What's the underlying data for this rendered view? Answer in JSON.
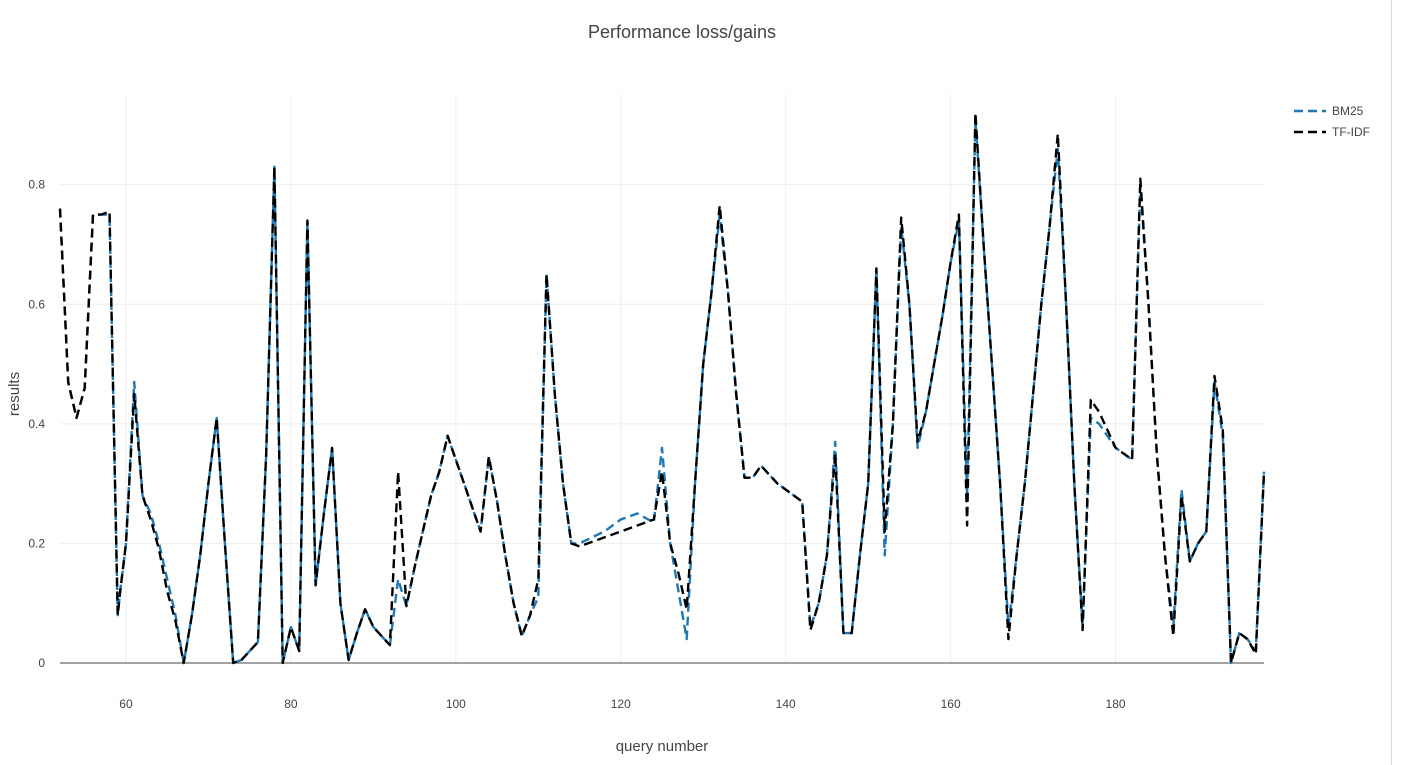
{
  "chart_data": {
    "type": "line",
    "title": "Performance loss/gains",
    "xlabel": "query number",
    "ylabel": "results",
    "xlim": [
      52,
      198
    ],
    "ylim": [
      0,
      0.95
    ],
    "xticks": [
      60,
      80,
      100,
      120,
      140,
      160,
      180
    ],
    "yticks": [
      0,
      0.2,
      0.4,
      0.6,
      0.8
    ],
    "ytick_labels": [
      "0",
      "0.2",
      "0.4",
      "0.6",
      "0.8"
    ],
    "grid": true,
    "legend_position": "top-right",
    "series": [
      {
        "name": "BM25",
        "color": "#1f77b4",
        "dash": "dashed",
        "points": [
          [
            52,
            0.76
          ],
          [
            53,
            0.47
          ],
          [
            54,
            0.41
          ],
          [
            55,
            0.46
          ],
          [
            56,
            0.75
          ],
          [
            57,
            0.75
          ],
          [
            58,
            0.75
          ],
          [
            59,
            0.08
          ],
          [
            59.3,
            0.12
          ],
          [
            60,
            0.2
          ],
          [
            61,
            0.47
          ],
          [
            62,
            0.28
          ],
          [
            63,
            0.25
          ],
          [
            64,
            0.2
          ],
          [
            65,
            0.14
          ],
          [
            66,
            0.08
          ],
          [
            67,
            0.0
          ],
          [
            68,
            0.08
          ],
          [
            69,
            0.18
          ],
          [
            70,
            0.3
          ],
          [
            71,
            0.41
          ],
          [
            72,
            0.2
          ],
          [
            73,
            0.0
          ],
          [
            74,
            0.005
          ],
          [
            76,
            0.035
          ],
          [
            77,
            0.35
          ],
          [
            78,
            0.83
          ],
          [
            79,
            0.0
          ],
          [
            80,
            0.06
          ],
          [
            81,
            0.02
          ],
          [
            82,
            0.74
          ],
          [
            83,
            0.13
          ],
          [
            84,
            0.25
          ],
          [
            85,
            0.36
          ],
          [
            86,
            0.1
          ],
          [
            87,
            0.005
          ],
          [
            88,
            0.05
          ],
          [
            89,
            0.09
          ],
          [
            90,
            0.06
          ],
          [
            91,
            0.045
          ],
          [
            92,
            0.03
          ],
          [
            93,
            0.14
          ],
          [
            94,
            0.095
          ],
          [
            95,
            0.16
          ],
          [
            96,
            0.22
          ],
          [
            97,
            0.28
          ],
          [
            98,
            0.32
          ],
          [
            99,
            0.38
          ],
          [
            100,
            0.34
          ],
          [
            101,
            0.3
          ],
          [
            102,
            0.26
          ],
          [
            103,
            0.22
          ],
          [
            104,
            0.345
          ],
          [
            105,
            0.27
          ],
          [
            106,
            0.18
          ],
          [
            107,
            0.1
          ],
          [
            108,
            0.045
          ],
          [
            109,
            0.08
          ],
          [
            110,
            0.11
          ],
          [
            111,
            0.65
          ],
          [
            112,
            0.45
          ],
          [
            113,
            0.3
          ],
          [
            114,
            0.2
          ],
          [
            115,
            0.2
          ],
          [
            118,
            0.22
          ],
          [
            120,
            0.24
          ],
          [
            122,
            0.25
          ],
          [
            124,
            0.235
          ],
          [
            125,
            0.36
          ],
          [
            126,
            0.2
          ],
          [
            127,
            0.12
          ],
          [
            128,
            0.04
          ],
          [
            129,
            0.3
          ],
          [
            130,
            0.5
          ],
          [
            131,
            0.62
          ],
          [
            132,
            0.75
          ],
          [
            133,
            0.62
          ],
          [
            134,
            0.45
          ],
          [
            135,
            0.31
          ],
          [
            136,
            0.31
          ],
          [
            137,
            0.33
          ],
          [
            139,
            0.3
          ],
          [
            142,
            0.27
          ],
          [
            143,
            0.06
          ],
          [
            144,
            0.1
          ],
          [
            145,
            0.18
          ],
          [
            146,
            0.37
          ],
          [
            147,
            0.05
          ],
          [
            148,
            0.05
          ],
          [
            149,
            0.18
          ],
          [
            150,
            0.3
          ],
          [
            151,
            0.66
          ],
          [
            152,
            0.18
          ],
          [
            153,
            0.4
          ],
          [
            154,
            0.73
          ],
          [
            155,
            0.6
          ],
          [
            156,
            0.36
          ],
          [
            157,
            0.42
          ],
          [
            158,
            0.5
          ],
          [
            159,
            0.58
          ],
          [
            160,
            0.67
          ],
          [
            161,
            0.74
          ],
          [
            162,
            0.28
          ],
          [
            163,
            0.91
          ],
          [
            164,
            0.7
          ],
          [
            165,
            0.5
          ],
          [
            166,
            0.3
          ],
          [
            167,
            0.06
          ],
          [
            168,
            0.18
          ],
          [
            169,
            0.3
          ],
          [
            170,
            0.45
          ],
          [
            171,
            0.6
          ],
          [
            172,
            0.73
          ],
          [
            173,
            0.86
          ],
          [
            174,
            0.6
          ],
          [
            175,
            0.3
          ],
          [
            176,
            0.06
          ],
          [
            177,
            0.41
          ],
          [
            178,
            0.4
          ],
          [
            179,
            0.38
          ],
          [
            180,
            0.36
          ],
          [
            181,
            0.35
          ],
          [
            182,
            0.34
          ],
          [
            183,
            0.8
          ],
          [
            184,
            0.6
          ],
          [
            185,
            0.35
          ],
          [
            186,
            0.18
          ],
          [
            187,
            0.06
          ],
          [
            188,
            0.29
          ],
          [
            189,
            0.17
          ],
          [
            190,
            0.2
          ],
          [
            191,
            0.22
          ],
          [
            192,
            0.47
          ],
          [
            193,
            0.38
          ],
          [
            194,
            0.0
          ],
          [
            195,
            0.05
          ],
          [
            196,
            0.04
          ],
          [
            197,
            0.02
          ],
          [
            198,
            0.32
          ]
        ]
      },
      {
        "name": "TF-IDF",
        "color": "#000000",
        "dash": "dashed",
        "points": [
          [
            52,
            0.76
          ],
          [
            53,
            0.47
          ],
          [
            54,
            0.41
          ],
          [
            55,
            0.46
          ],
          [
            56,
            0.75
          ],
          [
            57,
            0.75
          ],
          [
            58,
            0.755
          ],
          [
            59,
            0.08
          ],
          [
            59.3,
            0.12
          ],
          [
            60,
            0.2
          ],
          [
            61,
            0.45
          ],
          [
            62,
            0.28
          ],
          [
            63,
            0.24
          ],
          [
            64,
            0.19
          ],
          [
            65,
            0.12
          ],
          [
            66,
            0.07
          ],
          [
            67,
            0.0
          ],
          [
            68,
            0.08
          ],
          [
            69,
            0.18
          ],
          [
            70,
            0.3
          ],
          [
            71,
            0.41
          ],
          [
            72,
            0.2
          ],
          [
            73,
            0.0
          ],
          [
            74,
            0.005
          ],
          [
            76,
            0.035
          ],
          [
            77,
            0.35
          ],
          [
            78,
            0.83
          ],
          [
            79,
            0.0
          ],
          [
            80,
            0.06
          ],
          [
            81,
            0.02
          ],
          [
            82,
            0.74
          ],
          [
            83,
            0.13
          ],
          [
            84,
            0.25
          ],
          [
            85,
            0.36
          ],
          [
            86,
            0.1
          ],
          [
            87,
            0.005
          ],
          [
            88,
            0.05
          ],
          [
            89,
            0.09
          ],
          [
            90,
            0.06
          ],
          [
            91,
            0.045
          ],
          [
            92,
            0.03
          ],
          [
            93,
            0.32
          ],
          [
            94,
            0.095
          ],
          [
            95,
            0.16
          ],
          [
            96,
            0.22
          ],
          [
            97,
            0.28
          ],
          [
            98,
            0.32
          ],
          [
            99,
            0.38
          ],
          [
            100,
            0.34
          ],
          [
            101,
            0.3
          ],
          [
            102,
            0.26
          ],
          [
            103,
            0.22
          ],
          [
            104,
            0.345
          ],
          [
            105,
            0.27
          ],
          [
            106,
            0.18
          ],
          [
            107,
            0.1
          ],
          [
            108,
            0.045
          ],
          [
            109,
            0.08
          ],
          [
            110,
            0.14
          ],
          [
            111,
            0.65
          ],
          [
            112,
            0.45
          ],
          [
            113,
            0.3
          ],
          [
            114,
            0.2
          ],
          [
            115,
            0.195
          ],
          [
            118,
            0.21
          ],
          [
            120,
            0.22
          ],
          [
            122,
            0.23
          ],
          [
            124,
            0.24
          ],
          [
            125,
            0.32
          ],
          [
            126,
            0.2
          ],
          [
            127,
            0.15
          ],
          [
            128,
            0.09
          ],
          [
            129,
            0.3
          ],
          [
            130,
            0.5
          ],
          [
            131,
            0.62
          ],
          [
            132,
            0.765
          ],
          [
            133,
            0.62
          ],
          [
            134,
            0.45
          ],
          [
            135,
            0.31
          ],
          [
            136,
            0.31
          ],
          [
            137,
            0.33
          ],
          [
            139,
            0.3
          ],
          [
            142,
            0.27
          ],
          [
            143,
            0.055
          ],
          [
            144,
            0.1
          ],
          [
            145,
            0.18
          ],
          [
            146,
            0.35
          ],
          [
            147,
            0.05
          ],
          [
            148,
            0.05
          ],
          [
            149,
            0.18
          ],
          [
            150,
            0.3
          ],
          [
            151,
            0.66
          ],
          [
            152,
            0.22
          ],
          [
            153,
            0.4
          ],
          [
            154,
            0.745
          ],
          [
            155,
            0.6
          ],
          [
            156,
            0.37
          ],
          [
            157,
            0.42
          ],
          [
            158,
            0.5
          ],
          [
            159,
            0.58
          ],
          [
            160,
            0.67
          ],
          [
            161,
            0.75
          ],
          [
            162,
            0.23
          ],
          [
            163,
            0.92
          ],
          [
            164,
            0.7
          ],
          [
            165,
            0.5
          ],
          [
            166,
            0.3
          ],
          [
            167,
            0.04
          ],
          [
            168,
            0.18
          ],
          [
            169,
            0.3
          ],
          [
            170,
            0.45
          ],
          [
            171,
            0.6
          ],
          [
            172,
            0.73
          ],
          [
            173,
            0.885
          ],
          [
            174,
            0.6
          ],
          [
            175,
            0.3
          ],
          [
            176,
            0.055
          ],
          [
            177,
            0.44
          ],
          [
            178,
            0.42
          ],
          [
            179,
            0.39
          ],
          [
            180,
            0.36
          ],
          [
            181,
            0.35
          ],
          [
            182,
            0.34
          ],
          [
            183,
            0.81
          ],
          [
            184,
            0.6
          ],
          [
            185,
            0.35
          ],
          [
            186,
            0.18
          ],
          [
            187,
            0.045
          ],
          [
            188,
            0.28
          ],
          [
            189,
            0.17
          ],
          [
            190,
            0.2
          ],
          [
            191,
            0.22
          ],
          [
            192,
            0.48
          ],
          [
            193,
            0.39
          ],
          [
            194,
            0.0
          ],
          [
            195,
            0.05
          ],
          [
            196,
            0.04
          ],
          [
            197,
            0.015
          ],
          [
            198,
            0.32
          ]
        ]
      }
    ]
  }
}
